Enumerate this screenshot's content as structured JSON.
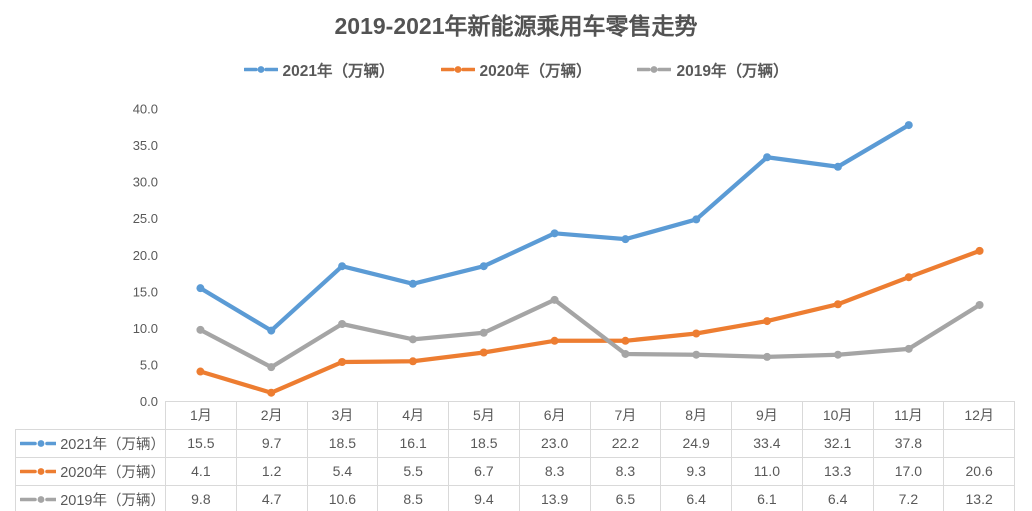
{
  "title": "2019-2021年新能源乘用车零售走势",
  "colors": {
    "series_blue": "#5B9BD5",
    "series_orange": "#ED7D31",
    "series_gray": "#A5A5A5",
    "title_text": "#535353",
    "body_text": "#595959",
    "table_border": "#D9D9D9"
  },
  "legend": [
    {
      "label": "2021年（万辆）",
      "color": "#5B9BD5"
    },
    {
      "label": "2020年（万辆）",
      "color": "#ED7D31"
    },
    {
      "label": "2019年（万辆）",
      "color": "#A5A5A5"
    }
  ],
  "chart_data": {
    "type": "line",
    "title": "2019-2021年新能源乘用车零售走势",
    "categories": [
      "1月",
      "2月",
      "3月",
      "4月",
      "5月",
      "6月",
      "7月",
      "8月",
      "9月",
      "10月",
      "11月",
      "12月"
    ],
    "series": [
      {
        "name": "2021年（万辆）",
        "color": "#5B9BD5",
        "values": [
          15.5,
          9.7,
          18.5,
          16.1,
          18.5,
          23.0,
          22.2,
          24.9,
          33.4,
          32.1,
          37.8,
          null
        ]
      },
      {
        "name": "2020年（万辆）",
        "color": "#ED7D31",
        "values": [
          4.1,
          1.2,
          5.4,
          5.5,
          6.7,
          8.3,
          8.3,
          9.3,
          11.0,
          13.3,
          17.0,
          20.6
        ]
      },
      {
        "name": "2019年（万辆）",
        "color": "#A5A5A5",
        "values": [
          9.8,
          4.7,
          10.6,
          8.5,
          9.4,
          13.9,
          6.5,
          6.4,
          6.1,
          6.4,
          7.2,
          13.2
        ]
      }
    ],
    "xlabel": "",
    "ylabel": "",
    "ylim": [
      0,
      40
    ],
    "yticks": [
      "0.0",
      "5.0",
      "10.0",
      "15.0",
      "20.0",
      "25.0",
      "30.0",
      "35.0",
      "40.0"
    ],
    "grid": false,
    "legend_position": "top",
    "marker": "circle",
    "data_table": true
  }
}
